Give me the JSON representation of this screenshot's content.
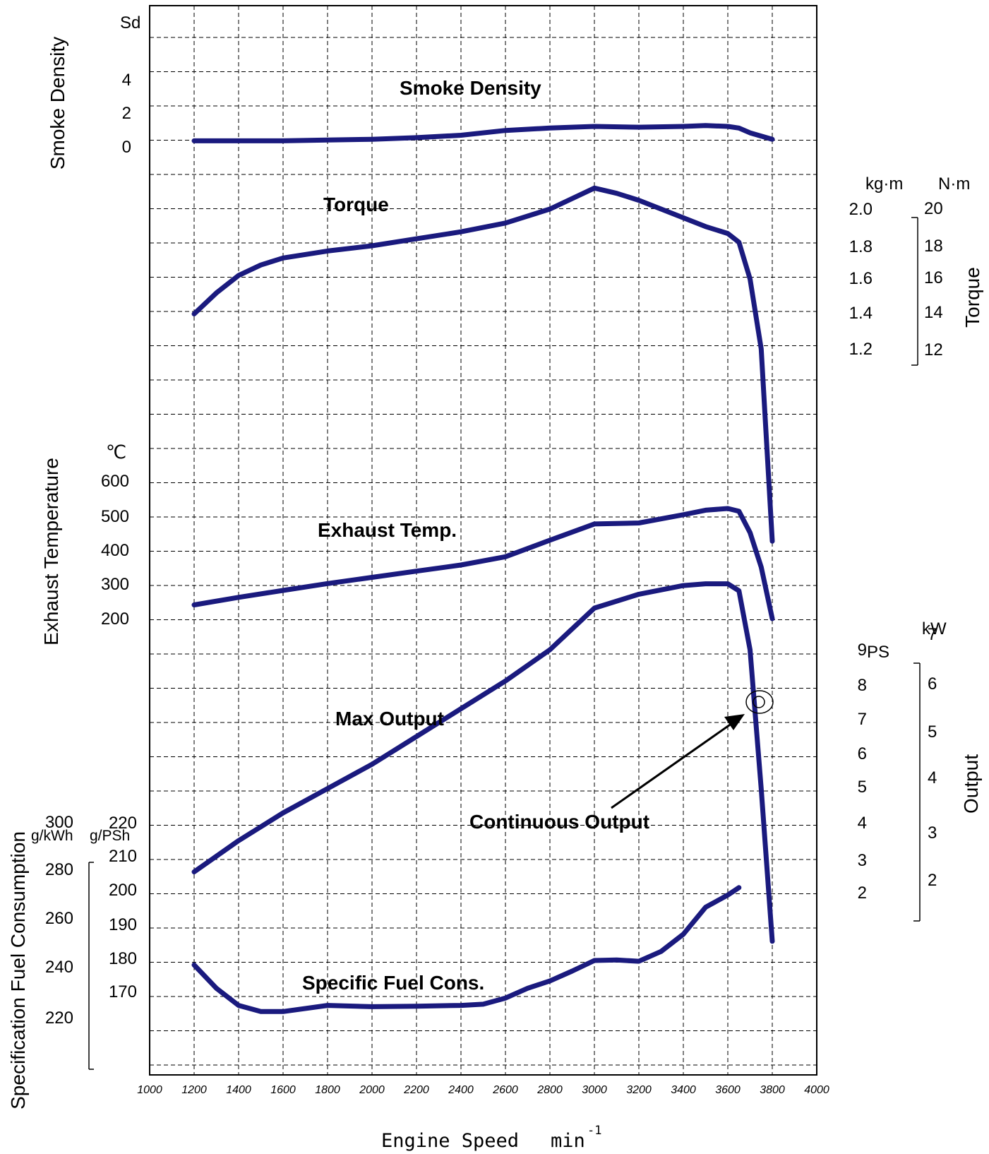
{
  "chart_data": {
    "type": "line",
    "colors": {
      "curve": "#1a1a7e",
      "grid": "#000000",
      "text": "#000000"
    },
    "xlabel": "Engine Speed",
    "xunit": "min",
    "xunit_exp": "-1",
    "x_ticks": [
      "1000",
      "1200",
      "1400",
      "1600",
      "1800",
      "2000",
      "2200",
      "2400",
      "2600",
      "2800",
      "3000",
      "3200",
      "3400",
      "3600",
      "3800",
      "4000"
    ],
    "xlim": [
      1000,
      4000
    ],
    "series": [
      {
        "key": "smoke",
        "label": "Smoke Density",
        "axis_title": "Smoke Density",
        "unit": "Sd",
        "ticks": [
          "4",
          "2",
          "0"
        ],
        "x": [
          1200,
          1400,
          1600,
          1800,
          2000,
          2200,
          2400,
          2600,
          2800,
          3000,
          3200,
          3400,
          3500,
          3600,
          3650,
          3700,
          3800
        ],
        "y": [
          0.2,
          0.2,
          0.2,
          0.25,
          0.3,
          0.4,
          0.55,
          0.85,
          1.0,
          1.1,
          1.05,
          1.1,
          1.15,
          1.1,
          1.0,
          0.7,
          0.3
        ]
      },
      {
        "key": "torque",
        "label": "Torque",
        "axis_title": "Torque",
        "unit_left": "kg·m",
        "unit_right": "N·m",
        "ticks_left": [
          "2.0",
          "1.8",
          "1.6",
          "1.4",
          "1.2"
        ],
        "ticks_right": [
          "20",
          "18",
          "16",
          "14",
          "12"
        ],
        "x": [
          1200,
          1300,
          1400,
          1500,
          1600,
          1800,
          2000,
          2200,
          2400,
          2600,
          2800,
          3000,
          3100,
          3200,
          3400,
          3500,
          3600,
          3650,
          3700,
          3750,
          3800
        ],
        "y": [
          1.4,
          1.52,
          1.62,
          1.68,
          1.72,
          1.76,
          1.79,
          1.83,
          1.87,
          1.92,
          2.0,
          2.12,
          2.09,
          2.05,
          1.95,
          1.9,
          1.86,
          1.81,
          1.6,
          1.2,
          0.1
        ]
      },
      {
        "key": "exhaust",
        "label": "Exhaust Temp.",
        "axis_title": "Exhaust Temperature",
        "unit": "℃",
        "ticks": [
          "600",
          "500",
          "400",
          "300",
          "200"
        ],
        "x": [
          1200,
          1400,
          1600,
          1800,
          2000,
          2200,
          2400,
          2600,
          2800,
          3000,
          3200,
          3400,
          3500,
          3600,
          3650,
          3700,
          3750,
          3800
        ],
        "y": [
          240,
          262,
          282,
          302,
          320,
          338,
          356,
          380,
          428,
          475,
          478,
          502,
          515,
          520,
          512,
          450,
          350,
          200
        ]
      },
      {
        "key": "output",
        "label": "Max Output",
        "axis_title": "Output",
        "unit_left": "PS",
        "unit_right": "kW",
        "ticks_left": [
          "9",
          "8",
          "7",
          "6",
          "5",
          "4",
          "3",
          "2"
        ],
        "ticks_right": [
          "7",
          "6",
          "5",
          "4",
          "3",
          "2"
        ],
        "x": [
          1200,
          1400,
          1600,
          1800,
          2000,
          2200,
          2400,
          2600,
          2800,
          3000,
          3200,
          3400,
          3500,
          3600,
          3650,
          3700,
          3750,
          3800
        ],
        "y": [
          2.6,
          3.5,
          4.3,
          5.0,
          5.7,
          6.5,
          7.3,
          8.1,
          9.0,
          10.2,
          10.6,
          10.85,
          10.9,
          10.9,
          10.7,
          9.0,
          5.0,
          0.6
        ]
      },
      {
        "key": "fuel",
        "label": "Specific Fuel Cons.",
        "axis_title": "Specification Fuel Consumption",
        "unit_left": "g/kWh",
        "unit_right": "g/PSh",
        "ticks_left": [
          "300",
          "280",
          "260",
          "240",
          "220"
        ],
        "ticks_right": [
          "220",
          "210",
          "200",
          "190",
          "180",
          "170"
        ],
        "x": [
          1200,
          1300,
          1400,
          1500,
          1600,
          1800,
          2000,
          2200,
          2400,
          2500,
          2600,
          2700,
          2800,
          2900,
          3000,
          3100,
          3200,
          3300,
          3400,
          3500,
          3600,
          3650
        ],
        "y": [
          241.5,
          232,
          225,
          222.5,
          222.5,
          225,
          224.5,
          224.7,
          225,
          225.5,
          228,
          232,
          235,
          239,
          243.3,
          243.5,
          243,
          247,
          254,
          265,
          270,
          273
        ]
      }
    ],
    "annotations": [
      {
        "text": "Continuous Output",
        "x": 3600,
        "y": 9.8
      }
    ]
  }
}
